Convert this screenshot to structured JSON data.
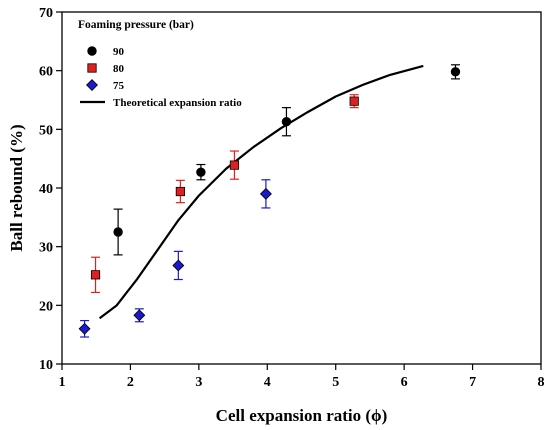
{
  "chart_data": {
    "type": "scatter",
    "xlabel": "Cell expansion ratio (ϕ)",
    "ylabel": "Ball rebound (%)",
    "xlim": [
      1,
      8
    ],
    "ylim": [
      10,
      70
    ],
    "xticks": [
      1,
      2,
      3,
      4,
      5,
      6,
      7,
      8
    ],
    "yticks": [
      10,
      20,
      30,
      40,
      50,
      60,
      70
    ],
    "grid": false,
    "legend": {
      "title": "Foaming pressure (bar)",
      "placement": "top-left"
    },
    "series": [
      {
        "name": "90",
        "marker": "circle",
        "color": "#000000",
        "errorbar_color": "#000000",
        "points": [
          {
            "x": 1.82,
            "y": 32.5,
            "err": 3.9
          },
          {
            "x": 3.03,
            "y": 42.7,
            "err": 1.3
          },
          {
            "x": 4.28,
            "y": 51.3,
            "err": 2.4
          },
          {
            "x": 6.75,
            "y": 59.8,
            "err": 1.2
          }
        ]
      },
      {
        "name": "80",
        "marker": "square",
        "color": "#e02020",
        "errorbar_color": "#e02020",
        "points": [
          {
            "x": 1.49,
            "y": 25.2,
            "err": 3.0
          },
          {
            "x": 2.73,
            "y": 39.4,
            "err": 1.9
          },
          {
            "x": 3.52,
            "y": 43.9,
            "err": 2.4
          },
          {
            "x": 5.27,
            "y": 54.8,
            "err": 1.1
          }
        ]
      },
      {
        "name": "75",
        "marker": "diamond",
        "color": "#1a1acc",
        "errorbar_color": "#1a1acc",
        "points": [
          {
            "x": 1.33,
            "y": 16.0,
            "err": 1.4
          },
          {
            "x": 2.13,
            "y": 18.3,
            "err": 1.1
          },
          {
            "x": 2.7,
            "y": 26.8,
            "err": 2.4
          },
          {
            "x": 3.98,
            "y": 39.0,
            "err": 2.4
          }
        ]
      }
    ],
    "line": {
      "name": "Theoretical expansion ratio",
      "color": "#000000",
      "x": [
        1.55,
        1.8,
        2.1,
        2.4,
        2.7,
        3.0,
        3.4,
        3.8,
        4.2,
        4.6,
        5.0,
        5.4,
        5.8,
        6.28
      ],
      "y": [
        17.8,
        20.0,
        24.5,
        29.5,
        34.5,
        38.7,
        43.3,
        47.0,
        50.2,
        53.0,
        55.6,
        57.6,
        59.3,
        60.8
      ]
    }
  }
}
